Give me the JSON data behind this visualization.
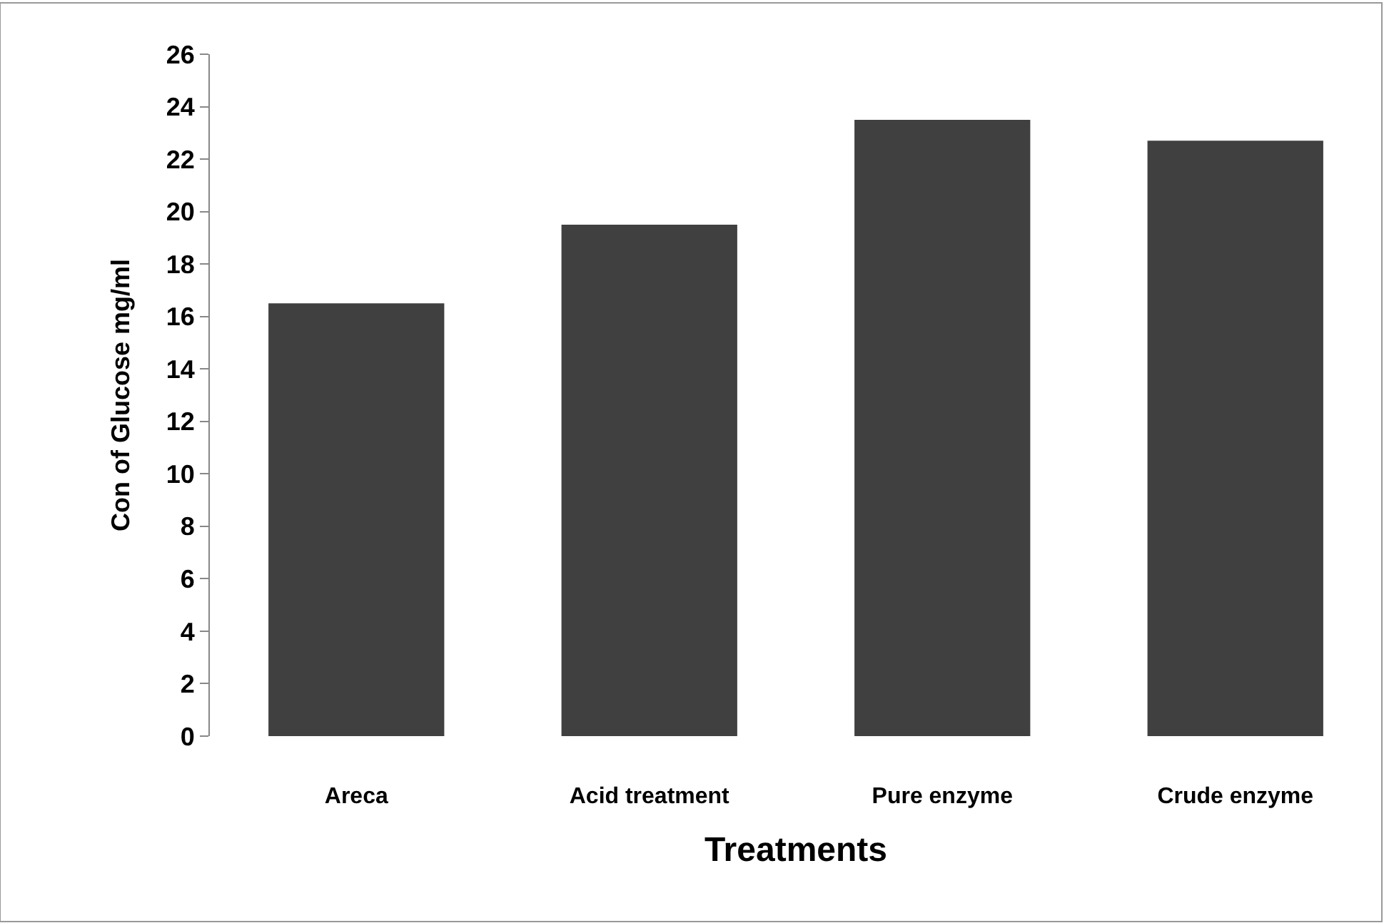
{
  "chart_data": {
    "type": "bar",
    "xlabel": "Treatments",
    "ylabel": "Con of Glucose mg/ml",
    "categories": [
      "Areca",
      "Acid treatment",
      "Pure enzyme",
      "Crude enzyme"
    ],
    "values": [
      16.5,
      19.5,
      23.5,
      22.7
    ],
    "color": "#404040",
    "ylim": [
      0,
      26
    ],
    "yticks": [
      0,
      2,
      4,
      6,
      8,
      10,
      12,
      14,
      16,
      18,
      20,
      22,
      24,
      26
    ],
    "tick_labels": "xy"
  }
}
